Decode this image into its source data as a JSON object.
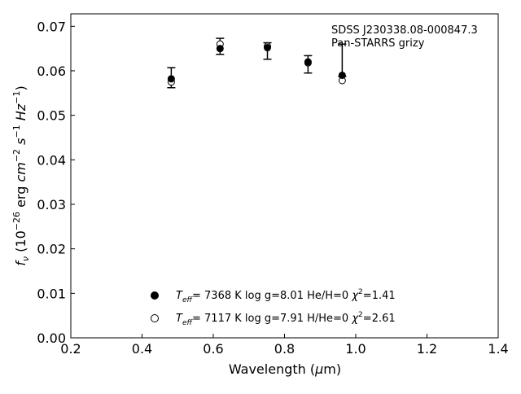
{
  "chart_data": {
    "type": "scatter",
    "annotation": [
      "SDSS J230338.08-000847.3",
      "Pan-STARRS grizy"
    ],
    "xlabel": {
      "pre": "Wavelength (",
      "mu": "μ",
      "post": "m)"
    },
    "ylabel": "f_ν (10^-26 erg cm^-2 s^-1 Hz^-1)",
    "xlim": [
      0.2,
      1.4
    ],
    "ylim": [
      0.0,
      0.0728
    ],
    "xticks": [
      "0.2",
      "0.4",
      "0.6",
      "0.8",
      "1.0",
      "1.2",
      "1.4"
    ],
    "yticks": [
      "0.00",
      "0.01",
      "0.02",
      "0.03",
      "0.04",
      "0.05",
      "0.06",
      "0.07"
    ],
    "grid": false,
    "legend_position": "lower-center",
    "observed": {
      "x": [
        0.482,
        0.619,
        0.752,
        0.866,
        0.962
      ],
      "y": [
        0.0585,
        0.0655,
        0.0645,
        0.0615,
        0.0595
      ],
      "yerr_low": [
        0.0562,
        0.0637,
        0.0626,
        0.0595,
        0.0587
      ],
      "yerr_high": [
        0.0607,
        0.0673,
        0.0663,
        0.0634,
        0.066
      ]
    },
    "series": [
      {
        "name": "T_eff= 7368 K log g=8.01 He/H=0 χ²=1.41",
        "marker": "filled",
        "x": [
          0.482,
          0.619,
          0.752,
          0.866,
          0.962
        ],
        "y": [
          0.0582,
          0.065,
          0.0652,
          0.062,
          0.059
        ]
      },
      {
        "name": "T_eff= 7117 K log g=7.91 H/He=0 χ²=2.61",
        "marker": "open",
        "x": [
          0.482,
          0.619,
          0.752,
          0.866,
          0.962
        ],
        "y": [
          0.0575,
          0.066,
          0.0655,
          0.0618,
          0.0578
        ]
      }
    ],
    "legend": [
      {
        "teff": "7368",
        "logg": "8.01",
        "comp": "He/H=0",
        "chi": "1.41"
      },
      {
        "teff": "7117",
        "logg": "7.91",
        "comp": "H/He=0",
        "chi": "2.61"
      }
    ]
  }
}
